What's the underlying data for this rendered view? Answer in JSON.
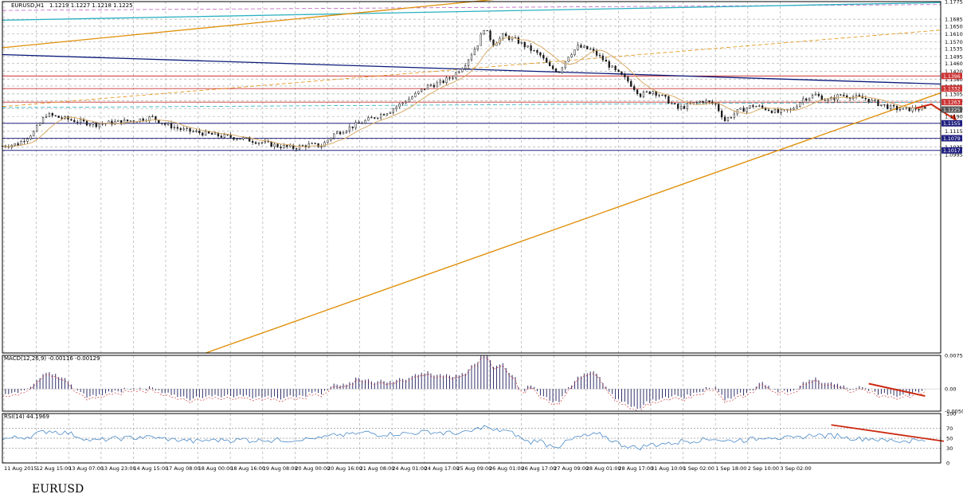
{
  "colors": {
    "grid": "#b8b8b8",
    "candle": "#1a1a1a",
    "ma": "#d4a45a",
    "channel": "#e0900a",
    "bluetrend": "#0a1a7a",
    "cyan": "#2ab0c0",
    "magenta": "#c060c0",
    "red_level": "#cc3333",
    "blue_level": "#202080",
    "arrow": "#cc2a10",
    "macd_hist": "#1a1a5a",
    "rsi_line": "#4a8ac8"
  },
  "chart_data": [
    {
      "type": "candlestick",
      "title": "EURUSD,H1",
      "ohlc_header": "1.1219 1.1227 1.1218 1.1225",
      "ylim": [
        0.9985,
        1.1775
      ],
      "y_ticks": [
        "1.1775",
        "1.1685",
        "1.1650",
        "1.1610",
        "1.1570",
        "1.1535",
        "1.1495",
        "1.1460",
        "1.1420",
        "1.1380",
        "1.1345",
        "1.1305",
        "1.1270",
        "1.1230",
        "1.1190",
        "1.1155",
        "1.1115",
        "1.1075",
        "1.1035",
        "1.0995"
      ],
      "price_labels": [
        {
          "text": "1.1396",
          "value": 1.1396,
          "color": "#cc3333"
        },
        {
          "text": "1.1332",
          "value": 1.1332,
          "color": "#cc3333"
        },
        {
          "text": "1.1263",
          "value": 1.1263,
          "color": "#cc3333"
        },
        {
          "text": "1.1225",
          "value": 1.1225,
          "color": "#555555"
        },
        {
          "text": "1.1155",
          "value": 1.1155,
          "color": "#202080"
        },
        {
          "text": "1.1079",
          "value": 1.1079,
          "color": "#202080"
        },
        {
          "text": "1.1017",
          "value": 1.1017,
          "color": "#202080"
        }
      ],
      "x_labels": [
        "11 Aug 2015",
        "12 Aug 15:00",
        "13 Aug 07:00",
        "13 Aug 23:00",
        "14 Aug 15:00",
        "17 Aug 08:00",
        "18 Aug 00:00",
        "18 Aug 16:00",
        "19 Aug 08:00",
        "20 Aug 00:00",
        "20 Aug 16:00",
        "21 Aug 08:00",
        "24 Aug 01:00",
        "24 Aug 17:00",
        "25 Aug 09:00",
        "26 Aug 01:00",
        "26 Aug 17:00",
        "27 Aug 09:00",
        "28 Aug 01:00",
        "28 Aug 17:00",
        "31 Aug 10:00",
        "1 Sep 02:00",
        "1 Sep 18:00",
        "2 Sep 10:00",
        "3 Sep 02:00"
      ],
      "close_path": [
        [
          0,
          1.104
        ],
        [
          5,
          1.105
        ],
        [
          10,
          1.111
        ],
        [
          14,
          1.12
        ],
        [
          18,
          1.1185
        ],
        [
          24,
          1.1165
        ],
        [
          30,
          1.115
        ],
        [
          36,
          1.116
        ],
        [
          42,
          1.117
        ],
        [
          48,
          1.1185
        ],
        [
          52,
          1.115
        ],
        [
          58,
          1.112
        ],
        [
          64,
          1.1105
        ],
        [
          70,
          1.109
        ],
        [
          76,
          1.108
        ],
        [
          82,
          1.106
        ],
        [
          88,
          1.104
        ],
        [
          93,
          1.103
        ],
        [
          98,
          1.1045
        ],
        [
          102,
          1.104
        ],
        [
          106,
          1.11
        ],
        [
          112,
          1.114
        ],
        [
          118,
          1.118
        ],
        [
          124,
          1.122
        ],
        [
          128,
          1.126
        ],
        [
          132,
          1.13
        ],
        [
          136,
          1.1345
        ],
        [
          140,
          1.136
        ],
        [
          144,
          1.1395
        ],
        [
          148,
          1.146
        ],
        [
          152,
          1.156
        ],
        [
          154,
          1.164
        ],
        [
          157,
          1.156
        ],
        [
          160,
          1.16
        ],
        [
          164,
          1.158
        ],
        [
          168,
          1.154
        ],
        [
          172,
          1.15
        ],
        [
          175,
          1.144
        ],
        [
          178,
          1.142
        ],
        [
          181,
          1.15
        ],
        [
          184,
          1.1545
        ],
        [
          188,
          1.153
        ],
        [
          192,
          1.148
        ],
        [
          196,
          1.142
        ],
        [
          200,
          1.137
        ],
        [
          204,
          1.13
        ],
        [
          208,
          1.132
        ],
        [
          212,
          1.128
        ],
        [
          216,
          1.123
        ],
        [
          220,
          1.125
        ],
        [
          224,
          1.127
        ],
        [
          228,
          1.125
        ],
        [
          231,
          1.117
        ],
        [
          235,
          1.1215
        ],
        [
          240,
          1.1245
        ],
        [
          244,
          1.123
        ],
        [
          248,
          1.121
        ],
        [
          252,
          1.122
        ],
        [
          256,
          1.128
        ],
        [
          260,
          1.13
        ],
        [
          264,
          1.127
        ],
        [
          268,
          1.13
        ],
        [
          272,
          1.129
        ],
        [
          276,
          1.128
        ],
        [
          280,
          1.1255
        ],
        [
          284,
          1.1235
        ],
        [
          288,
          1.1225
        ],
        [
          292,
          1.123
        ],
        [
          295,
          1.1225
        ]
      ],
      "annotations": [
        {
          "type": "arrow",
          "points": [
            [
              292,
              1.1232
            ],
            [
              297,
              1.1252
            ],
            [
              305,
              1.117
            ]
          ]
        }
      ]
    },
    {
      "type": "histogram",
      "title": "MACD(12,26,9) -0.00116 -0.00129",
      "ylim": [
        -0.00502,
        0.00759
      ],
      "y_ticks": [
        "0.00759",
        "0.00",
        "-0.00502"
      ]
    },
    {
      "type": "line",
      "title": "RSI(14) 44.1969",
      "ylim": [
        0,
        100
      ],
      "y_ticks": [
        "100",
        "70",
        "50",
        "30",
        "0"
      ],
      "levels": [
        70,
        50,
        30
      ]
    }
  ],
  "caption": "EURUSD"
}
